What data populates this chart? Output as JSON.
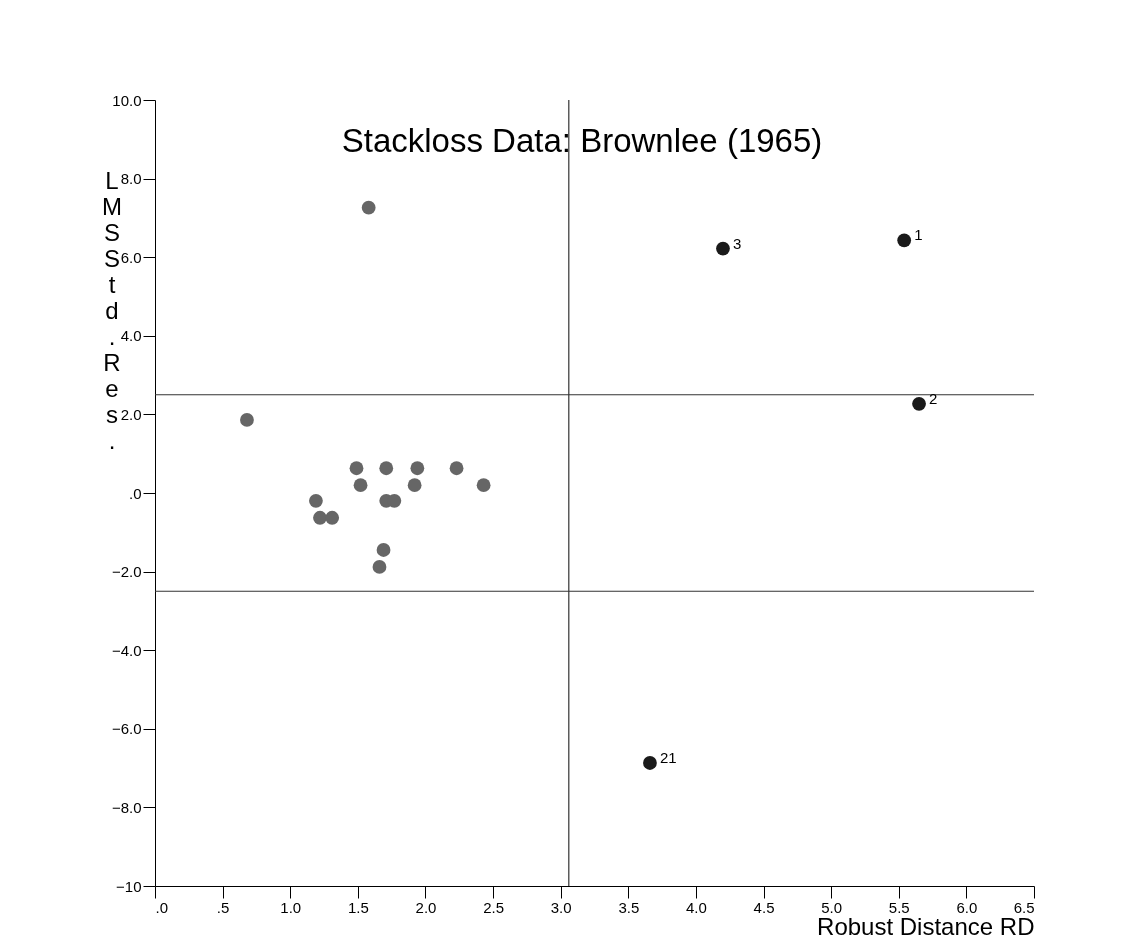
{
  "chart_data": {
    "type": "scatter",
    "title": "Stackloss Data: Brownlee (1965)",
    "xlabel": "Robust Distance RD",
    "ylabel": "LMS Std. Res.",
    "xlim": [
      0,
      6.5
    ],
    "ylim": [
      -10,
      10
    ],
    "xticks": [
      {
        "value": 0,
        "label": ".0"
      },
      {
        "value": 0.5,
        "label": ".5"
      },
      {
        "value": 1,
        "label": "1.0"
      },
      {
        "value": 1.5,
        "label": "1.5"
      },
      {
        "value": 2,
        "label": "2.0"
      },
      {
        "value": 2.5,
        "label": "2.5"
      },
      {
        "value": 3,
        "label": "3.0"
      },
      {
        "value": 3.5,
        "label": "3.5"
      },
      {
        "value": 4,
        "label": "4.0"
      },
      {
        "value": 4.5,
        "label": "4.5"
      },
      {
        "value": 5,
        "label": "5.0"
      },
      {
        "value": 5.5,
        "label": "5.5"
      },
      {
        "value": 6,
        "label": "6.0"
      },
      {
        "value": 6.5,
        "label": "6.5"
      }
    ],
    "yticks": [
      {
        "value": 10,
        "label": "10.0"
      },
      {
        "value": 8,
        "label": "8.0"
      },
      {
        "value": 6,
        "label": "6.0"
      },
      {
        "value": 4,
        "label": "4.0"
      },
      {
        "value": 2,
        "label": "2.0"
      },
      {
        "value": 0,
        "label": ".0"
      },
      {
        "value": -2,
        "label": "−2.0"
      },
      {
        "value": -4,
        "label": "−4.0"
      },
      {
        "value": -6,
        "label": "−6.0"
      },
      {
        "value": -8,
        "label": "−8.0"
      },
      {
        "value": -10,
        "label": "−10"
      }
    ],
    "grid": false,
    "marker": "circle",
    "series": [
      {
        "color": "#666666",
        "x": [
          0.68,
          1.49,
          1.71,
          1.94,
          2.23,
          1.52,
          1.92,
          2.43,
          1.19,
          1.71,
          1.77,
          1.22,
          1.31,
          1.69,
          1.66,
          1.58
        ],
        "values": [
          1.86,
          0.63,
          0.63,
          0.63,
          0.63,
          0.2,
          0.2,
          0.2,
          -0.2,
          -0.2,
          -0.2,
          -0.63,
          -0.63,
          -1.45,
          -1.88,
          7.26
        ]
      },
      {
        "color": "#1a1a1a",
        "x": [
          5.54,
          5.65,
          4.2,
          3.66
        ],
        "values": [
          6.43,
          2.27,
          6.22,
          -6.87
        ]
      }
    ],
    "annotations": [
      {
        "text": "1",
        "x": 5.54,
        "y": 6.43
      },
      {
        "text": "2",
        "x": 5.65,
        "y": 2.27
      },
      {
        "text": "3",
        "x": 4.2,
        "y": 6.22
      },
      {
        "text": "21",
        "x": 3.66,
        "y": -6.87
      }
    ],
    "ref_lines": [
      {
        "axis": "y",
        "value": 2.5,
        "color": "#333333"
      },
      {
        "axis": "y",
        "value": -2.5,
        "color": "#333333"
      },
      {
        "axis": "x",
        "value": 3.06,
        "color": "#333333"
      }
    ]
  }
}
